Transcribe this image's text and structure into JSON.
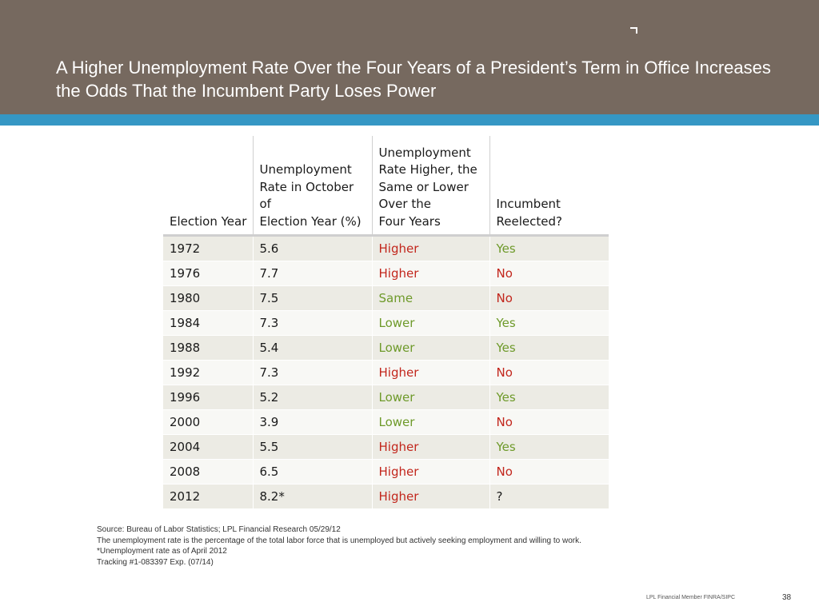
{
  "slide": {
    "title": "A Higher Unemployment Rate Over the Four Years of a President’s Term in Office Increases the Odds That the Incumbent Party Loses Power",
    "colors": {
      "header_bg": "#76695f",
      "stripe": "#3597c4",
      "red_text": "#c2261c",
      "green_text": "#6e9a2a"
    },
    "icon": "corner-bracket-icon"
  },
  "table": {
    "headers": [
      "Election Year",
      "Unemployment\nRate in October of\nElection Year (%)",
      "Unemployment\nRate Higher, the\nSame or Lower\nOver the\nFour Years",
      "Incumbent\nReelected?"
    ],
    "rows": [
      [
        "1972",
        "5.6",
        "Higher",
        "Yes"
      ],
      [
        "1976",
        "7.7",
        "Higher",
        "No"
      ],
      [
        "1980",
        "7.5",
        "Same",
        "No"
      ],
      [
        "1984",
        "7.3",
        "Lower",
        "Yes"
      ],
      [
        "1988",
        "5.4",
        "Lower",
        "Yes"
      ],
      [
        "1992",
        "7.3",
        "Higher",
        "No"
      ],
      [
        "1996",
        "5.2",
        "Lower",
        "Yes"
      ],
      [
        "2000",
        "3.9",
        "Lower",
        "No"
      ],
      [
        "2004",
        "5.5",
        "Higher",
        "Yes"
      ],
      [
        "2008",
        "6.5",
        "Higher",
        "No"
      ],
      [
        "2012",
        "8.2*",
        "Higher",
        "?"
      ]
    ]
  },
  "notes": [
    "Source: Bureau of Labor Statistics; LPL Financial Research 05/29/12",
    "The unemployment rate is the percentage of the total labor force that is unemployed but actively seeking employment and willing to work.",
    "*Unemployment rate as of April 2012",
    "Tracking #1-083397 Exp. (07/14)"
  ],
  "footer": {
    "member_text": "LPL Financial Member FINRA/SIPC",
    "page_number": "38"
  }
}
